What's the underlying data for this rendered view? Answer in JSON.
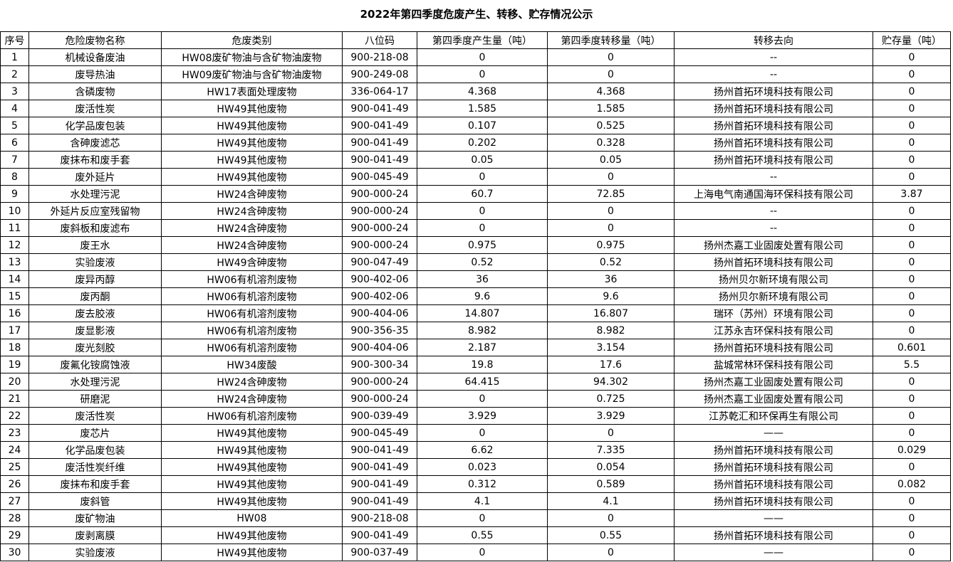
{
  "title": "2022年第四季度危废产生、转移、贮存情况公示",
  "table": {
    "header": [
      "序号",
      "危险废物名称",
      "危废类别",
      "八位码",
      "第四季度产生量（吨）",
      "第四季度转移量（吨）",
      "转移去向",
      "贮存量（吨）"
    ],
    "rows": [
      [
        "1",
        "机械设备废油",
        "HW08废矿物油与含矿物油废物",
        "900-218-08",
        "0",
        "0",
        "--",
        "0"
      ],
      [
        "2",
        "废导热油",
        "HW09废矿物油与含矿物油废物",
        "900-249-08",
        "0",
        "0",
        "--",
        "0"
      ],
      [
        "3",
        "含磷废物",
        "HW17表面处理废物",
        "336-064-17",
        "4.368",
        "4.368",
        "扬州首拓环境科技有限公司",
        "0"
      ],
      [
        "4",
        "废活性炭",
        "HW49其他废物",
        "900-041-49",
        "1.585",
        "1.585",
        "扬州首拓环境科技有限公司",
        "0"
      ],
      [
        "5",
        "化学品废包装",
        "HW49其他废物",
        "900-041-49",
        "0.107",
        "0.525",
        "扬州首拓环境科技有限公司",
        "0"
      ],
      [
        "6",
        "含砷废滤芯",
        "HW49其他废物",
        "900-041-49",
        "0.202",
        "0.328",
        "扬州首拓环境科技有限公司",
        "0"
      ],
      [
        "7",
        "废抹布和废手套",
        "HW49其他废物",
        "900-041-49",
        "0.05",
        "0.05",
        "扬州首拓环境科技有限公司",
        "0"
      ],
      [
        "8",
        "废外延片",
        "HW49其他废物",
        "900-045-49",
        "0",
        "0",
        "--",
        "0"
      ],
      [
        "9",
        "水处理污泥",
        "HW24含砷废物",
        "900-000-24",
        "60.7",
        "72.85",
        "上海电气南通国海环保科技有限公司",
        "3.87"
      ],
      [
        "10",
        "外延片反应室残留物",
        "HW24含砷废物",
        "900-000-24",
        "0",
        "0",
        "--",
        "0"
      ],
      [
        "11",
        "废斜板和废滤布",
        "HW24含砷废物",
        "900-000-24",
        "0",
        "0",
        "--",
        "0"
      ],
      [
        "12",
        "废王水",
        "HW24含砷废物",
        "900-000-24",
        "0.975",
        "0.975",
        "扬州杰嘉工业固废处置有限公司",
        "0"
      ],
      [
        "13",
        "实验废液",
        "HW49含砷废物",
        "900-047-49",
        "0.52",
        "0.52",
        "扬州首拓环境科技有限公司",
        "0"
      ],
      [
        "14",
        "废异丙醇",
        "HW06有机溶剂废物",
        "900-402-06",
        "36",
        "36",
        "扬州贝尔新环境有限公司",
        "0"
      ],
      [
        "15",
        "废丙酮",
        "HW06有机溶剂废物",
        "900-402-06",
        "9.6",
        "9.6",
        "扬州贝尔新环境有限公司",
        "0"
      ],
      [
        "16",
        "废去胶液",
        "HW06有机溶剂废物",
        "900-404-06",
        "14.807",
        "16.807",
        "瑞环（苏州）环境有限公司",
        "0"
      ],
      [
        "17",
        "废显影液",
        "HW06有机溶剂废物",
        "900-356-35",
        "8.982",
        "8.982",
        "江苏永吉环保科技有限公司",
        "0"
      ],
      [
        "18",
        "废光刻胶",
        "HW06有机溶剂废物",
        "900-404-06",
        "2.187",
        "3.154",
        "扬州首拓环境科技有限公司",
        "0.601"
      ],
      [
        "19",
        "废氟化铵腐蚀液",
        "HW34废酸",
        "900-300-34",
        "19.8",
        "17.6",
        "盐城常林环保科技有限公司",
        "5.5"
      ],
      [
        "20",
        "水处理污泥",
        "HW24含砷废物",
        "900-000-24",
        "64.415",
        "94.302",
        "扬州杰嘉工业固废处置有限公司",
        "0"
      ],
      [
        "21",
        "研磨泥",
        "HW24含砷废物",
        "900-000-24",
        "0",
        "0.725",
        "扬州杰嘉工业固废处置有限公司",
        "0"
      ],
      [
        "22",
        "废活性炭",
        "HW06有机溶剂废物",
        "900-039-49",
        "3.929",
        "3.929",
        "江苏乾汇和环保再生有限公司",
        "0"
      ],
      [
        "23",
        "废芯片",
        "HW49其他废物",
        "900-045-49",
        "0",
        "0",
        "——",
        "0"
      ],
      [
        "24",
        "化学品废包装",
        "HW49其他废物",
        "900-041-49",
        "6.62",
        "7.335",
        "扬州首拓环境科技有限公司",
        "0.029"
      ],
      [
        "25",
        "废活性炭纤维",
        "HW49其他废物",
        "900-041-49",
        "0.023",
        "0.054",
        "扬州首拓环境科技有限公司",
        "0"
      ],
      [
        "26",
        "废抹布和废手套",
        "HW49其他废物",
        "900-041-49",
        "0.312",
        "0.589",
        "扬州首拓环境科技有限公司",
        "0.082"
      ],
      [
        "27",
        "废斜管",
        "HW49其他废物",
        "900-041-49",
        "4.1",
        "4.1",
        "扬州首拓环境科技有限公司",
        "0"
      ],
      [
        "28",
        "废矿物油",
        "HW08",
        "900-218-08",
        "0",
        "0",
        "——",
        "0"
      ],
      [
        "29",
        "废剥离膜",
        "HW49其他废物",
        "900-041-49",
        "0.55",
        "0.55",
        "扬州首拓环境科技有限公司",
        "0"
      ],
      [
        "30",
        "实验废液",
        "HW49其他废物",
        "900-037-49",
        "0",
        "0",
        "——",
        "0"
      ]
    ]
  }
}
